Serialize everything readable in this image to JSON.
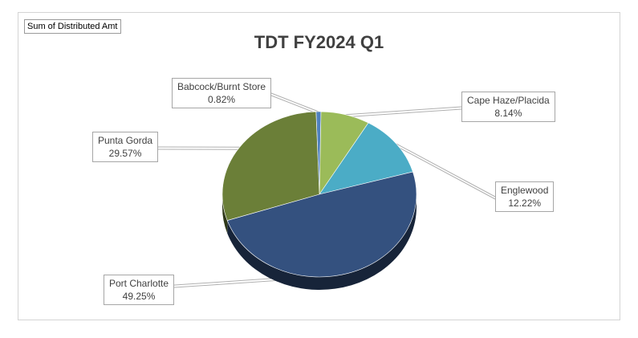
{
  "pivot_field_label": "Sum of Distributed Amt",
  "chart_data": {
    "type": "pie",
    "title": "TDT FY2024 Q1",
    "slices": [
      {
        "label": "Babcock/Burnt Store",
        "value": 0.82,
        "value_label": "0.82%",
        "color": "#4f81bd"
      },
      {
        "label": "Cape Haze/Placida",
        "value": 8.14,
        "value_label": "8.14%",
        "color": "#9bbb59"
      },
      {
        "label": "Englewood",
        "value": 12.22,
        "value_label": "12.22%",
        "color": "#4bacc6"
      },
      {
        "label": "Port Charlotte",
        "value": 49.25,
        "value_label": "49.25%",
        "color": "#34517f"
      },
      {
        "label": "Punta Gorda",
        "value": 29.57,
        "value_label": "29.57%",
        "color": "#6b7f38"
      }
    ]
  }
}
